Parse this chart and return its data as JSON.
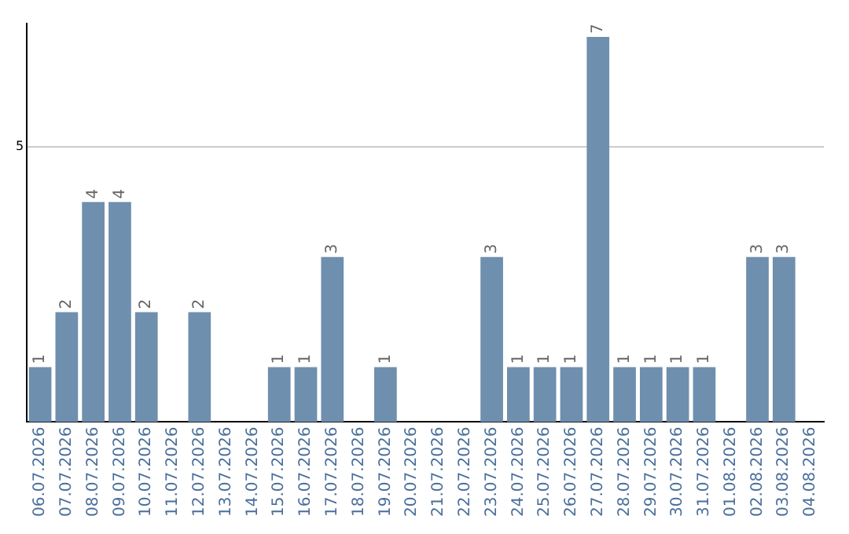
{
  "chart_data": {
    "type": "bar",
    "categories": [
      "06.07.2026",
      "07.07.2026",
      "08.07.2026",
      "09.07.2026",
      "10.07.2026",
      "11.07.2026",
      "12.07.2026",
      "13.07.2026",
      "14.07.2026",
      "15.07.2026",
      "16.07.2026",
      "17.07.2026",
      "18.07.2026",
      "19.07.2026",
      "20.07.2026",
      "21.07.2026",
      "22.07.2026",
      "23.07.2026",
      "24.07.2026",
      "25.07.2026",
      "26.07.2026",
      "27.07.2026",
      "28.07.2026",
      "29.07.2026",
      "30.07.2026",
      "31.07.2026",
      "01.08.2026",
      "02.08.2026",
      "03.08.2026",
      "04.08.2026"
    ],
    "values": [
      1,
      2,
      4,
      4,
      2,
      null,
      2,
      null,
      null,
      1,
      1,
      3,
      null,
      1,
      null,
      null,
      null,
      3,
      1,
      1,
      1,
      7,
      1,
      1,
      1,
      1,
      null,
      3,
      3,
      null
    ],
    "color": "#6f8fae",
    "ylim": [
      0,
      7.25
    ],
    "yticks": [
      5
    ],
    "grid": "y",
    "data_labels": true
  }
}
